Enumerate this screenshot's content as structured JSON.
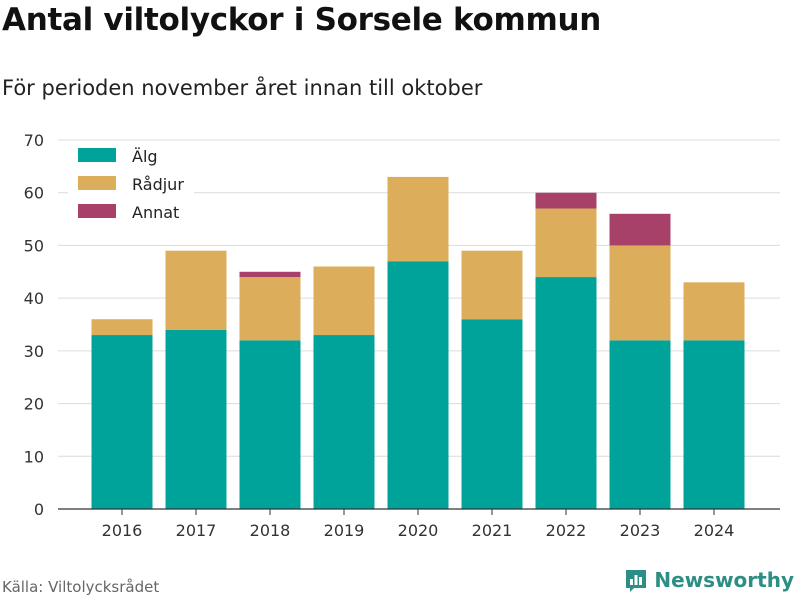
{
  "header": {
    "title": "Antal viltolyckor i Sorsele kommun",
    "subtitle": "För perioden november året innan till oktober"
  },
  "footer": {
    "source": "Källa: Viltolycksrådet",
    "brand": "Newsworthy"
  },
  "chart_data": {
    "type": "bar",
    "stacked": true,
    "categories": [
      "2016",
      "2017",
      "2018",
      "2019",
      "2020",
      "2021",
      "2022",
      "2023",
      "2024"
    ],
    "series": [
      {
        "name": "Älg",
        "color": "#00a39a",
        "values": [
          33,
          34,
          32,
          33,
          47,
          36,
          44,
          32,
          32
        ]
      },
      {
        "name": "Rådjur",
        "color": "#dcad5a",
        "values": [
          3,
          15,
          12,
          13,
          16,
          13,
          13,
          18,
          11
        ]
      },
      {
        "name": "Annat",
        "color": "#a7416a",
        "values": [
          0,
          0,
          1,
          0,
          0,
          0,
          3,
          6,
          0
        ]
      }
    ],
    "ylim": [
      0,
      70
    ],
    "yticks": [
      0,
      10,
      20,
      30,
      40,
      50,
      60,
      70
    ],
    "grid": true,
    "legend": "top-left",
    "xlabel": "",
    "ylabel": ""
  }
}
